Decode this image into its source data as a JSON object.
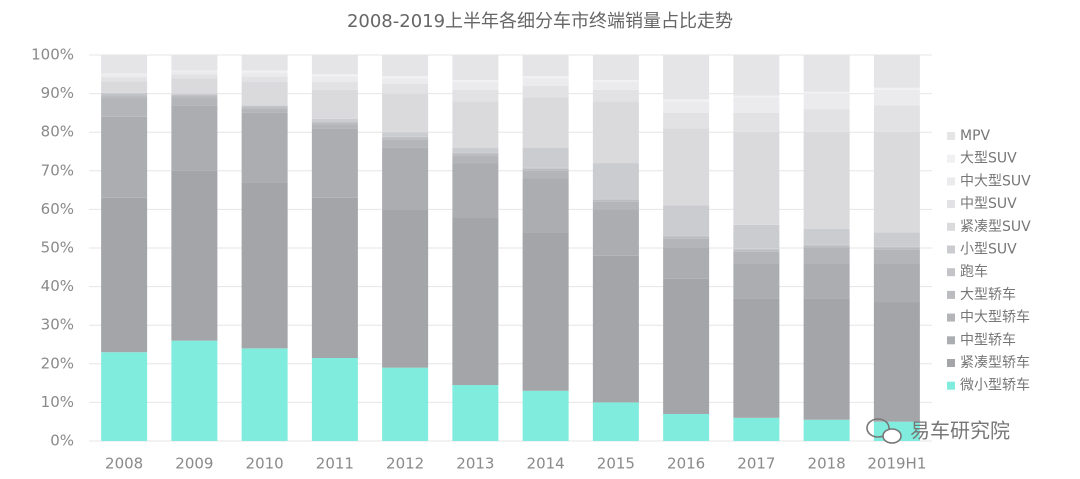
{
  "chart_data": {
    "type": "stacked_bar",
    "title": "2008-2019上半年各细分车市终端销量占比走势",
    "categories": [
      "2008",
      "2009",
      "2010",
      "2011",
      "2012",
      "2013",
      "2014",
      "2015",
      "2016",
      "2017",
      "2018",
      "2019H1"
    ],
    "series": [
      {
        "name": "微小型轿车",
        "color": "#80ecdd",
        "values": [
          23,
          26,
          24,
          21.5,
          19,
          14.5,
          13,
          10,
          7,
          6,
          5.5,
          5
        ]
      },
      {
        "name": "紧凑型轿车",
        "color": "#a4a5a9",
        "values": [
          40,
          44,
          43,
          41.5,
          41,
          43.5,
          41,
          38,
          35,
          31,
          31.5,
          31
        ]
      },
      {
        "name": "中型轿车",
        "color": "#acadb1",
        "values": [
          21,
          17,
          18,
          18,
          16,
          14,
          14,
          12,
          8,
          9,
          9,
          10
        ]
      },
      {
        "name": "中大型轿车",
        "color": "#b4b5b9",
        "values": [
          5,
          2,
          1,
          1,
          2,
          2,
          2,
          2,
          2.5,
          3,
          4,
          3.5
        ]
      },
      {
        "name": "大型轿车",
        "color": "#bbbcc0",
        "values": [
          0.5,
          0.5,
          0.5,
          0.5,
          0.5,
          0.5,
          0.5,
          0.5,
          0.5,
          0.5,
          0.5,
          0.5
        ]
      },
      {
        "name": "跑车",
        "color": "#c3c4c7",
        "values": [
          0.5,
          0.3,
          0.3,
          0.3,
          0.3,
          0.3,
          0.3,
          0.3,
          0.3,
          0.3,
          0.3,
          0.3
        ]
      },
      {
        "name": "小型SUV",
        "color": "#cbcccf",
        "values": [
          0.2,
          0.2,
          0.2,
          0.7,
          1.2,
          1.2,
          5.2,
          9.2,
          7.7,
          6.2,
          4.2,
          3.7
        ]
      },
      {
        "name": "紧凑型SUV",
        "color": "#dadadd",
        "values": [
          3,
          4,
          6,
          7.5,
          10,
          12,
          13,
          16,
          20,
          24,
          25,
          26
        ]
      },
      {
        "name": "中型SUV",
        "color": "#e2e2e4",
        "values": [
          1,
          1,
          1.5,
          2,
          2.5,
          3,
          3,
          3,
          4,
          5,
          6,
          7
        ]
      },
      {
        "name": "中大型SUV",
        "color": "#ebebed",
        "values": [
          0.8,
          0.8,
          1,
          1.5,
          1.5,
          2,
          2,
          2,
          3,
          4,
          4,
          4
        ]
      },
      {
        "name": "大型SUV",
        "color": "#f1f1f3",
        "values": [
          0.2,
          0.2,
          0.5,
          0.5,
          0.5,
          0.5,
          0.5,
          0.5,
          0.5,
          0.5,
          0.5,
          0.5
        ]
      },
      {
        "name": "MPV",
        "color": "#e5e5e7",
        "values": [
          4.8,
          4,
          4,
          5,
          5.5,
          6.5,
          5.5,
          6.5,
          11.5,
          10.5,
          9.5,
          8.5
        ]
      }
    ],
    "ylim": [
      0,
      100
    ],
    "yticks": [
      {
        "value": 0,
        "label": "0%"
      },
      {
        "value": 10,
        "label": "10%"
      },
      {
        "value": 20,
        "label": "20%"
      },
      {
        "value": 30,
        "label": "30%"
      },
      {
        "value": 40,
        "label": "40%"
      },
      {
        "value": 50,
        "label": "50%"
      },
      {
        "value": 60,
        "label": "60%"
      },
      {
        "value": 70,
        "label": "70%"
      },
      {
        "value": 80,
        "label": "80%"
      },
      {
        "value": 90,
        "label": "90%"
      },
      {
        "value": 100,
        "label": "100%"
      }
    ],
    "grid": true,
    "legend": "right",
    "source": "易车研究院"
  }
}
